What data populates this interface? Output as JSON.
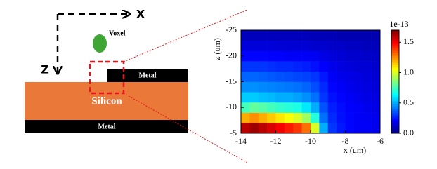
{
  "schematic": {
    "x_axis": "X",
    "z_axis": "Z",
    "voxel": "Voxel",
    "metal_top": "Metal",
    "silicon": "Silicon",
    "metal_bottom": "Metal"
  },
  "chart_data": {
    "type": "heatmap",
    "x_label": "x (um)",
    "y_label": "z (um)",
    "xbins": [
      -14,
      -13.5,
      -13,
      -12.5,
      -12,
      -11.5,
      -11,
      -10.5,
      -10,
      -9.5,
      -9,
      -8.5,
      -8,
      -7.5,
      -7,
      -6.5,
      -6
    ],
    "ybins": [
      -5,
      -7,
      -9,
      -11,
      -13,
      -15,
      -17,
      -19,
      -21,
      -23,
      -25
    ],
    "values": [
      [
        1.6,
        1.65,
        1.6,
        1.55,
        1.5,
        1.45,
        1.4,
        1.3,
        1.0,
        0.5,
        0.3,
        0.25,
        0.22,
        0.2,
        0.2,
        0.18
      ],
      [
        1.2,
        1.25,
        1.2,
        1.15,
        1.1,
        1.05,
        1.0,
        0.9,
        0.7,
        0.4,
        0.28,
        0.24,
        0.22,
        0.2,
        0.19,
        0.18
      ],
      [
        0.75,
        0.8,
        0.78,
        0.75,
        0.72,
        0.7,
        0.68,
        0.6,
        0.5,
        0.35,
        0.26,
        0.23,
        0.21,
        0.2,
        0.18,
        0.17
      ],
      [
        0.55,
        0.55,
        0.53,
        0.52,
        0.5,
        0.5,
        0.48,
        0.45,
        0.4,
        0.3,
        0.24,
        0.22,
        0.2,
        0.18,
        0.17,
        0.16
      ],
      [
        0.45,
        0.45,
        0.44,
        0.43,
        0.42,
        0.41,
        0.4,
        0.38,
        0.34,
        0.28,
        0.22,
        0.2,
        0.18,
        0.17,
        0.16,
        0.15
      ],
      [
        0.38,
        0.38,
        0.37,
        0.36,
        0.35,
        0.34,
        0.33,
        0.32,
        0.3,
        0.25,
        0.2,
        0.18,
        0.17,
        0.16,
        0.15,
        0.14
      ],
      [
        0.3,
        0.3,
        0.3,
        0.29,
        0.28,
        0.28,
        0.27,
        0.26,
        0.24,
        0.21,
        0.18,
        0.16,
        0.15,
        0.14,
        0.14,
        0.13
      ],
      [
        0.22,
        0.22,
        0.22,
        0.21,
        0.21,
        0.2,
        0.2,
        0.2,
        0.19,
        0.17,
        0.15,
        0.14,
        0.13,
        0.13,
        0.12,
        0.12
      ],
      [
        0.15,
        0.15,
        0.15,
        0.15,
        0.14,
        0.14,
        0.14,
        0.14,
        0.13,
        0.13,
        0.12,
        0.12,
        0.11,
        0.11,
        0.1,
        0.1
      ],
      [
        0.1,
        0.1,
        0.1,
        0.1,
        0.1,
        0.1,
        0.1,
        0.1,
        0.09,
        0.09,
        0.09,
        0.08,
        0.08,
        0.08,
        0.08,
        0.08
      ]
    ],
    "xlim": [
      -14,
      -6
    ],
    "xticks": [
      -14,
      -12,
      -10,
      -8,
      -6
    ],
    "ylim": [
      -5,
      -25
    ],
    "yticks": [
      -25,
      -20,
      -15,
      -10,
      -5
    ],
    "colormap": "jet",
    "colorbar": {
      "lim": [
        0,
        1.7
      ],
      "offset_label": "1e-13",
      "ticks": [
        {
          "value": 0,
          "label": "0.0"
        },
        {
          "value": 0.5,
          "label": "0.5"
        },
        {
          "value": 1,
          "label": "1.0"
        },
        {
          "value": 1.5,
          "label": "1.5"
        }
      ]
    }
  }
}
